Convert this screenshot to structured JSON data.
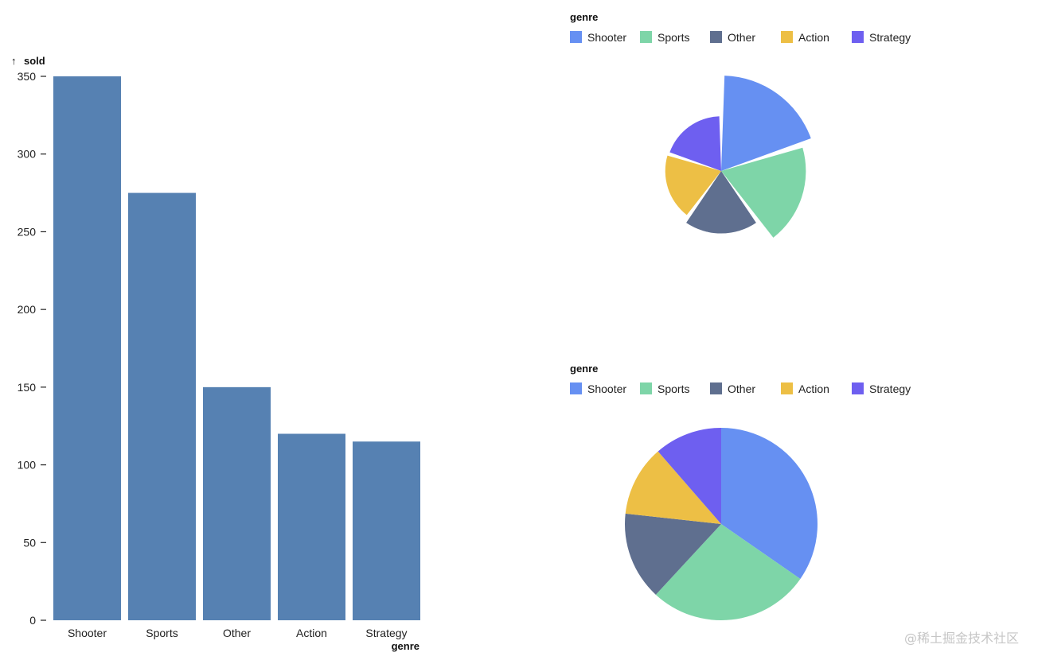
{
  "chart_data": [
    {
      "type": "bar",
      "title": "",
      "xlabel": "genre",
      "ylabel": "sold",
      "ylabel_arrow": "↑",
      "categories": [
        "Shooter",
        "Sports",
        "Other",
        "Action",
        "Strategy"
      ],
      "values": [
        350,
        275,
        150,
        120,
        115
      ],
      "ylim": [
        0,
        350
      ],
      "yticks": [
        0,
        50,
        100,
        150,
        200,
        250,
        300,
        350
      ],
      "color": "#5681b2"
    },
    {
      "type": "pie",
      "variant": "rose",
      "legend_title": "genre",
      "categories": [
        "Shooter",
        "Sports",
        "Other",
        "Action",
        "Strategy"
      ],
      "values": [
        350,
        275,
        150,
        120,
        115
      ],
      "colors": [
        "#6690f2",
        "#7ed5a8",
        "#5f6f8f",
        "#edbf45",
        "#6e5ff0"
      ]
    },
    {
      "type": "pie",
      "legend_title": "genre",
      "categories": [
        "Shooter",
        "Sports",
        "Other",
        "Action",
        "Strategy"
      ],
      "values": [
        350,
        275,
        150,
        120,
        115
      ],
      "colors": [
        "#6690f2",
        "#7ed5a8",
        "#5f6f8f",
        "#edbf45",
        "#6e5ff0"
      ]
    }
  ],
  "watermark": "@稀土掘金技术社区"
}
